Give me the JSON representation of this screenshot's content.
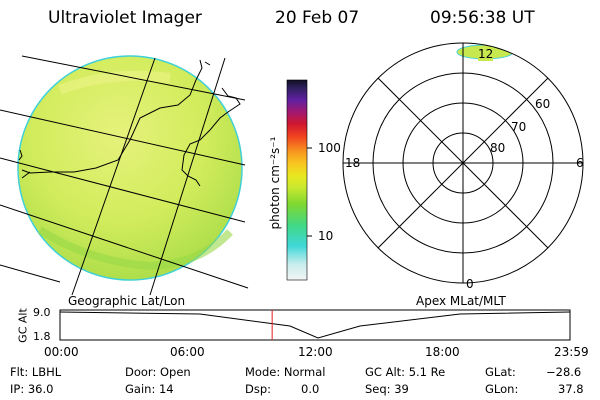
{
  "header": {
    "title": "Ultraviolet Imager",
    "date": "20 Feb 07",
    "time": "09:56:38 UT"
  },
  "colorbar": {
    "unit_label": "photon cm⁻²s⁻¹",
    "ticks": [
      "100",
      "10"
    ]
  },
  "polar_plot": {
    "mlt_labels": [
      "12",
      "18",
      "6",
      "0"
    ],
    "lat_labels": [
      "60",
      "70",
      "80"
    ]
  },
  "panel_labels": {
    "left": "Geographic Lat/Lon",
    "right": "Apex MLat/MLT"
  },
  "altitude_plot": {
    "ylabel": "GC Alt",
    "ymax": "9.0",
    "ymin": "1.8",
    "x_ticks": [
      "00:00",
      "06:00",
      "12:00",
      "18:00",
      "23:59"
    ],
    "current_time_fraction": 0.416
  },
  "info": {
    "flt": "Flt: LBHL",
    "ip": "IP: 36.0",
    "door": "Door: Open",
    "gain": "Gain: 14",
    "mode": "Mode: Normal",
    "dsp_label": "Dsp:",
    "dsp_value": "0.0",
    "gc_alt": "GC Alt: 5.1 Re",
    "seq": "Seq: 39",
    "glat_label": "GLat:",
    "glat_value": "−28.6",
    "glon_label": "GLon:",
    "glon_value": "37.8"
  },
  "colors": {
    "image_main": "#c8e850",
    "image_light": "#e2f07a",
    "image_edge": "#40d0d8",
    "marker": "#e02020",
    "grid": "#000000"
  }
}
